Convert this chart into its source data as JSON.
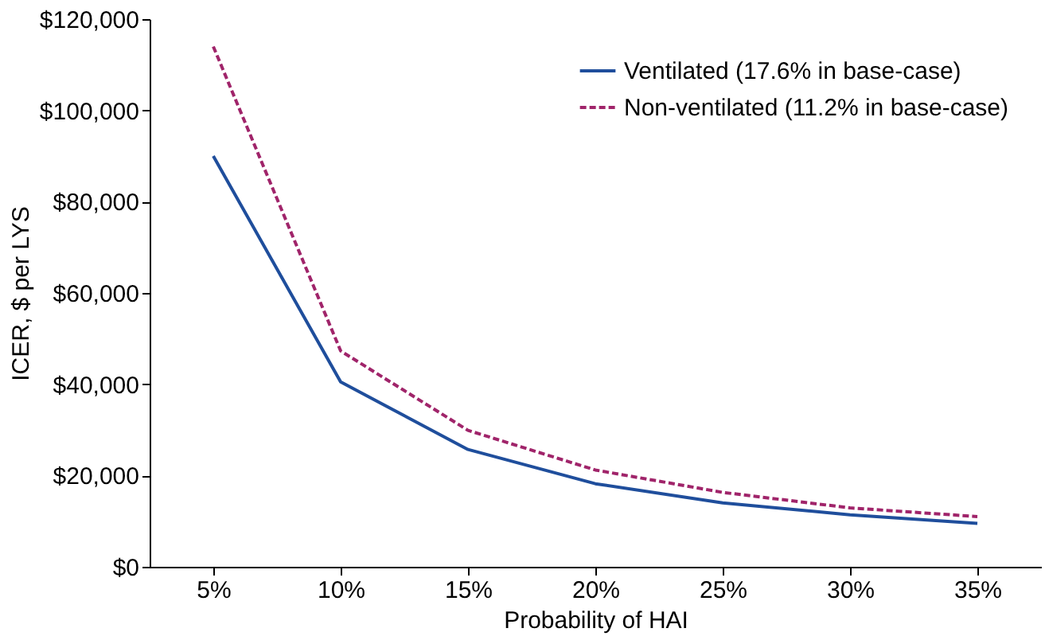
{
  "chart_data": {
    "type": "line",
    "xlabel": "Probability of HAI",
    "ylabel": "ICER, $ per LYS",
    "categories": [
      "5%",
      "10%",
      "15%",
      "20%",
      "25%",
      "30%",
      "35%"
    ],
    "series": [
      {
        "name": "Ventilated (17.6% in base-case)",
        "color": "#1f4e9c",
        "line_style": "solid",
        "values": [
          90000,
          40500,
          25700,
          18200,
          14000,
          11400,
          9500
        ]
      },
      {
        "name": "Non-ventilated (11.2% in base-case)",
        "color": "#a0246a",
        "line_style": "dashed",
        "values": [
          114000,
          47300,
          29900,
          21200,
          16300,
          12900,
          11000
        ]
      }
    ],
    "ylim": [
      0,
      120000
    ],
    "yticks": [
      {
        "value": 0,
        "label": "$0"
      },
      {
        "value": 20000,
        "label": "$20,000"
      },
      {
        "value": 40000,
        "label": "$40,000"
      },
      {
        "value": 60000,
        "label": "$60,000"
      },
      {
        "value": 80000,
        "label": "$80,000"
      },
      {
        "value": 100000,
        "label": "$100,000"
      },
      {
        "value": 120000,
        "label": "$120,000"
      }
    ],
    "grid": false,
    "legend": "top right",
    "marker": "none"
  }
}
